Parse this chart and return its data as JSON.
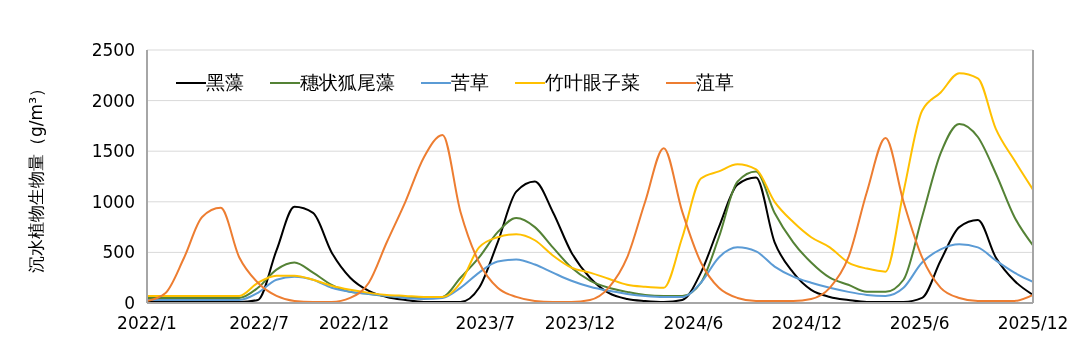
{
  "chart_data": {
    "type": "line",
    "ylabel": "沉水植物生物量（g/m³）",
    "x": [
      "2022-01-01",
      "2022-01-31",
      "2022-03-02",
      "2022-03-31",
      "2022-04-30",
      "2022-05-30",
      "2022-06-29",
      "2022-07-29",
      "2022-08-27",
      "2022-09-26",
      "2022-10-26",
      "2022-11-25",
      "2022-12-25",
      "2023-01-23",
      "2023-02-22",
      "2023-03-24",
      "2023-04-23",
      "2023-05-22",
      "2023-06-21",
      "2023-07-21",
      "2023-08-20",
      "2023-09-19",
      "2023-10-18",
      "2023-11-17",
      "2023-12-17",
      "2024-01-16",
      "2024-02-15",
      "2024-03-15",
      "2024-04-14",
      "2024-05-14",
      "2024-06-13",
      "2024-07-12",
      "2024-08-11",
      "2024-09-10",
      "2024-10-10",
      "2024-11-09",
      "2024-12-08",
      "2025-01-07",
      "2025-02-06",
      "2025-03-08",
      "2025-04-07",
      "2025-05-06",
      "2025-06-05",
      "2025-07-05",
      "2025-08-04",
      "2025-09-03",
      "2025-10-02",
      "2025-11-01",
      "2025-12-01"
    ],
    "series": [
      {
        "name": "黑藻",
        "color": "#000000",
        "values": [
          10,
          10,
          10,
          10,
          10,
          10,
          30,
          520,
          950,
          890,
          500,
          250,
          120,
          60,
          30,
          10,
          10,
          10,
          150,
          600,
          1100,
          1200,
          900,
          500,
          250,
          100,
          40,
          20,
          10,
          30,
          300,
          750,
          1170,
          1240,
          600,
          300,
          130,
          60,
          30,
          10,
          10,
          10,
          50,
          420,
          750,
          820,
          450,
          220,
          80
        ]
      },
      {
        "name": "穗状狐尾藻",
        "color": "#548235",
        "values": [
          50,
          50,
          50,
          50,
          50,
          50,
          150,
          330,
          400,
          300,
          180,
          110,
          90,
          70,
          60,
          50,
          60,
          250,
          450,
          700,
          840,
          750,
          550,
          350,
          220,
          150,
          110,
          80,
          70,
          70,
          200,
          650,
          1200,
          1300,
          890,
          600,
          400,
          250,
          180,
          110,
          110,
          230,
          850,
          1480,
          1770,
          1640,
          1280,
          850,
          570
        ]
      },
      {
        "name": "苦草",
        "color": "#5b9bd5",
        "values": [
          30,
          30,
          30,
          30,
          30,
          30,
          100,
          230,
          260,
          230,
          150,
          110,
          90,
          70,
          50,
          40,
          50,
          150,
          300,
          410,
          430,
          380,
          300,
          220,
          160,
          120,
          90,
          70,
          60,
          60,
          200,
          450,
          550,
          510,
          360,
          260,
          200,
          150,
          110,
          80,
          70,
          150,
          400,
          530,
          580,
          550,
          420,
          300,
          210
        ]
      },
      {
        "name": "竹叶眼子菜",
        "color": "#ffc000",
        "values": [
          70,
          70,
          70,
          70,
          70,
          70,
          200,
          270,
          270,
          230,
          170,
          130,
          100,
          80,
          70,
          60,
          60,
          200,
          550,
          650,
          680,
          620,
          470,
          350,
          300,
          240,
          180,
          160,
          150,
          650,
          1230,
          1300,
          1370,
          1320,
          1000,
          800,
          650,
          550,
          400,
          340,
          310,
          1100,
          1900,
          2080,
          2270,
          2220,
          1720,
          1410,
          1120
        ]
      },
      {
        "name": "菹草",
        "color": "#ed7d31",
        "values": [
          20,
          100,
          450,
          850,
          940,
          450,
          200,
          70,
          20,
          10,
          10,
          50,
          200,
          600,
          1000,
          1440,
          1660,
          900,
          400,
          150,
          60,
          20,
          10,
          10,
          30,
          150,
          450,
          1000,
          1530,
          900,
          400,
          150,
          50,
          20,
          20,
          20,
          40,
          150,
          450,
          1100,
          1630,
          1000,
          450,
          150,
          50,
          20,
          20,
          20,
          80
        ]
      }
    ],
    "ylim": [
      0,
      2500
    ],
    "yticks": [
      0,
      500,
      1000,
      1500,
      2000,
      2500
    ],
    "xlim": [
      "2022-01",
      "2025-12"
    ],
    "xticks": [
      {
        "value": "2022-01",
        "label": "2022/1"
      },
      {
        "value": "2022-07",
        "label": "2022/7"
      },
      {
        "value": "2022-12",
        "label": "2022/12"
      },
      {
        "value": "2023-07",
        "label": "2023/7"
      },
      {
        "value": "2023-12",
        "label": "2023/12"
      },
      {
        "value": "2024-06",
        "label": "2024/6"
      },
      {
        "value": "2024-12",
        "label": "2024/12"
      },
      {
        "value": "2025-06",
        "label": "2025/6"
      },
      {
        "value": "2025-12",
        "label": "2025/12"
      }
    ],
    "grid": "y",
    "legend": "top left",
    "marker": "none",
    "line_style": "solid"
  }
}
